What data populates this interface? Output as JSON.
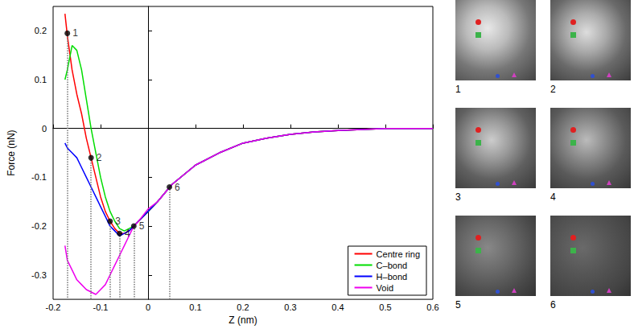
{
  "chart_data": {
    "type": "line",
    "x_label": "Z (nm)",
    "y_label": "Force (nN)",
    "x": [
      -0.175,
      -0.17,
      -0.16,
      -0.15,
      -0.14,
      -0.13,
      -0.12,
      -0.11,
      -0.1,
      -0.09,
      -0.08,
      -0.07,
      -0.06,
      -0.05,
      -0.04,
      -0.03,
      -0.02,
      0,
      0.02,
      0.05,
      0.1,
      0.15,
      0.2,
      0.25,
      0.3,
      0.35,
      0.4,
      0.45,
      0.5,
      0.55,
      0.6
    ],
    "series": [
      {
        "name": "Centre ring",
        "color": "#ff0000",
        "values": [
          0.235,
          0.19,
          0.12,
          0.07,
          0.03,
          -0.02,
          -0.06,
          -0.1,
          -0.14,
          -0.17,
          -0.19,
          -0.205,
          -0.215,
          -0.215,
          -0.21,
          -0.2,
          -0.19,
          -0.17,
          -0.15,
          -0.115,
          -0.075,
          -0.05,
          -0.03,
          -0.02,
          -0.012,
          -0.007,
          -0.004,
          -0.002,
          0,
          0,
          0
        ]
      },
      {
        "name": "C–bond",
        "color": "#00dd00",
        "values": [
          0.1,
          0.12,
          0.17,
          0.16,
          0.12,
          0.06,
          0.0,
          -0.05,
          -0.1,
          -0.14,
          -0.17,
          -0.19,
          -0.205,
          -0.21,
          -0.205,
          -0.2,
          -0.19,
          -0.17,
          -0.15,
          -0.115,
          -0.075,
          -0.05,
          -0.03,
          -0.02,
          -0.012,
          -0.007,
          -0.004,
          -0.002,
          0,
          0,
          0
        ]
      },
      {
        "name": "H–bond",
        "color": "#0000ff",
        "values": [
          -0.03,
          -0.04,
          -0.05,
          -0.06,
          -0.08,
          -0.1,
          -0.12,
          -0.14,
          -0.16,
          -0.18,
          -0.2,
          -0.21,
          -0.22,
          -0.215,
          -0.21,
          -0.2,
          -0.19,
          -0.17,
          -0.15,
          -0.115,
          -0.075,
          -0.05,
          -0.03,
          -0.02,
          -0.012,
          -0.007,
          -0.004,
          -0.002,
          0,
          0,
          0
        ]
      },
      {
        "name": "Void",
        "color": "#ee00ee",
        "values": [
          -0.24,
          -0.27,
          -0.29,
          -0.31,
          -0.32,
          -0.33,
          -0.335,
          -0.34,
          -0.33,
          -0.32,
          -0.3,
          -0.28,
          -0.26,
          -0.24,
          -0.22,
          -0.2,
          -0.19,
          -0.165,
          -0.15,
          -0.115,
          -0.075,
          -0.05,
          -0.03,
          -0.02,
          -0.012,
          -0.007,
          -0.004,
          -0.002,
          0,
          0,
          0
        ]
      }
    ],
    "annotations": [
      {
        "label": "1",
        "x": -0.17,
        "y": 0.195
      },
      {
        "label": "2",
        "x": -0.12,
        "y": -0.06
      },
      {
        "label": "3",
        "x": -0.08,
        "y": -0.19
      },
      {
        "label": "4",
        "x": -0.06,
        "y": -0.215
      },
      {
        "label": "5",
        "x": -0.03,
        "y": -0.2
      },
      {
        "label": "6",
        "x": 0.045,
        "y": -0.12
      }
    ],
    "xlim": [
      -0.2,
      0.6
    ],
    "xticks": [
      -0.2,
      -0.1,
      0,
      0.1,
      0.2,
      0.3,
      0.4,
      0.5,
      0.6
    ],
    "ylim": [
      -0.35,
      0.25
    ],
    "yticks": [
      -0.3,
      -0.2,
      -0.1,
      0,
      0.1,
      0.2
    ],
    "grid": false,
    "legend": "lower right"
  },
  "panels": [
    "1",
    "2",
    "3",
    "4",
    "5",
    "6"
  ]
}
